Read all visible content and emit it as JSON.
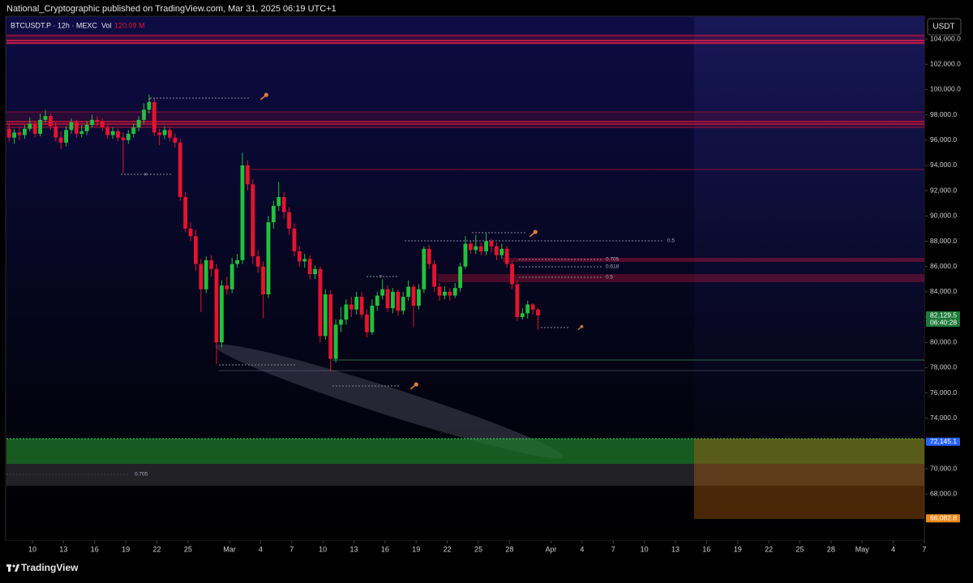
{
  "header": {
    "publisher": "National_Cryptographic published on TradingView.com, Mar 31, 2025 06:19 UTC+1"
  },
  "footer": {
    "brand": "TradingView"
  },
  "chart_data": {
    "type": "candlestick",
    "symbol": "BTCUSDT.P · 12h · MEXC",
    "volume_label": "Vol",
    "volume_value": "120.09 M",
    "currency": "USDT",
    "up_color": "#22c03c",
    "down_color": "#e5132e",
    "open": [
      96900,
      96200,
      96600,
      96400,
      96900,
      97300,
      96500,
      97600,
      97900,
      97100,
      96200,
      95800,
      96800,
      97400,
      96500,
      96700,
      97200,
      97600,
      97500,
      97000,
      96400,
      96700,
      96200,
      96000,
      96500,
      97000,
      97600,
      98400,
      99000,
      96600,
      96400,
      96800,
      96200,
      95800,
      91500,
      89000,
      88400,
      86200,
      84200,
      86500,
      85800,
      80000,
      84500,
      84200,
      86200,
      86500,
      94000,
      92500,
      86800,
      86000,
      83800,
      89500,
      90800,
      91500,
      90300,
      89000,
      87200,
      86400,
      86600,
      85400,
      85800,
      80500,
      83800,
      78700,
      81400,
      81800,
      83000,
      82600,
      83600,
      82200,
      80800,
      82900,
      83700,
      84200,
      82700,
      84000,
      82500,
      83600,
      84400,
      82900,
      84200,
      87400,
      86200,
      84400,
      83700,
      84000,
      83700,
      84300,
      86000,
      87800,
      87300,
      87600,
      87200,
      88000,
      87600,
      86900,
      87400,
      86200,
      84600,
      82000,
      82300,
      83000,
      82600
    ],
    "high": [
      97300,
      96900,
      97000,
      97200,
      97800,
      97500,
      98100,
      98400,
      98100,
      97400,
      96700,
      97100,
      97700,
      97600,
      97200,
      97500,
      98000,
      97900,
      97700,
      97200,
      97000,
      96900,
      96600,
      96800,
      97300,
      97900,
      98900,
      99600,
      99300,
      96900,
      97100,
      97000,
      96500,
      96100,
      91900,
      89500,
      88900,
      86600,
      86800,
      86900,
      86200,
      84900,
      85200,
      86700,
      87000,
      95000,
      94400,
      92900,
      87300,
      86400,
      90000,
      91200,
      92700,
      91900,
      90700,
      89400,
      87600,
      87000,
      86900,
      86100,
      86000,
      84200,
      84100,
      81800,
      82800,
      83400,
      83600,
      84000,
      84000,
      82600,
      83400,
      84000,
      85000,
      84500,
      84300,
      84200,
      84000,
      84900,
      84600,
      84600,
      87600,
      87700,
      86500,
      84700,
      84400,
      84300,
      84700,
      86300,
      88400,
      88000,
      88500,
      87900,
      88700,
      88200,
      87900,
      87800,
      87600,
      86400,
      84900,
      82700,
      83300,
      83100,
      82700
    ],
    "low": [
      95900,
      95700,
      96000,
      96100,
      96700,
      96200,
      96300,
      97400,
      96800,
      95900,
      95300,
      95500,
      96500,
      96200,
      96200,
      96400,
      97000,
      97100,
      96700,
      96100,
      96100,
      95900,
      93400,
      95700,
      96200,
      96700,
      97300,
      98100,
      96300,
      95600,
      96100,
      95900,
      95400,
      91200,
      88700,
      88000,
      85700,
      82400,
      83900,
      85200,
      78300,
      79600,
      83800,
      83900,
      85900,
      86200,
      92000,
      86200,
      85500,
      81900,
      83500,
      89000,
      90400,
      89800,
      88500,
      86800,
      86000,
      85900,
      85000,
      85000,
      80000,
      80200,
      77700,
      78400,
      80800,
      81400,
      82000,
      82200,
      81900,
      80400,
      80600,
      82500,
      83400,
      82400,
      82300,
      82100,
      82200,
      83300,
      81200,
      82600,
      83900,
      85800,
      84000,
      83300,
      83400,
      83300,
      83500,
      84000,
      85800,
      87000,
      87000,
      86900,
      86900,
      87100,
      86500,
      86600,
      85900,
      84200,
      81700,
      81800,
      81900,
      82200,
      81000
    ],
    "close": [
      96200,
      96600,
      96400,
      96900,
      97300,
      96500,
      97600,
      97900,
      97100,
      96200,
      95800,
      96800,
      97400,
      96500,
      96700,
      97200,
      97600,
      97500,
      97000,
      96400,
      96700,
      96200,
      96000,
      96500,
      97000,
      97600,
      98400,
      99000,
      96600,
      96400,
      96800,
      96200,
      95800,
      91500,
      89000,
      88400,
      86200,
      84200,
      86500,
      85800,
      80000,
      84500,
      84200,
      86200,
      86500,
      94000,
      92500,
      86800,
      86000,
      83800,
      89500,
      90800,
      91500,
      90300,
      89000,
      87200,
      86400,
      86600,
      85400,
      85800,
      80500,
      83800,
      78700,
      81400,
      81800,
      83000,
      82600,
      83600,
      82200,
      80800,
      82900,
      83700,
      84200,
      82700,
      84000,
      82500,
      83600,
      84400,
      82900,
      84200,
      87400,
      86200,
      84400,
      83700,
      84000,
      83700,
      84300,
      86000,
      87800,
      87300,
      87600,
      87200,
      88000,
      87600,
      86900,
      87400,
      86200,
      84600,
      82000,
      82300,
      83000,
      82600,
      82129.5
    ],
    "xlim": [
      0,
      177
    ],
    "xticks": [
      {
        "value": 5,
        "label": "10"
      },
      {
        "value": 11,
        "label": "13"
      },
      {
        "value": 17,
        "label": "16"
      },
      {
        "value": 23,
        "label": "19"
      },
      {
        "value": 29,
        "label": "22"
      },
      {
        "value": 35,
        "label": "25"
      },
      {
        "value": 43,
        "label": "Mar"
      },
      {
        "value": 49,
        "label": "4"
      },
      {
        "value": 55,
        "label": "7"
      },
      {
        "value": 61,
        "label": "10"
      },
      {
        "value": 67,
        "label": "13"
      },
      {
        "value": 73,
        "label": "16"
      },
      {
        "value": 79,
        "label": "19"
      },
      {
        "value": 85,
        "label": "22"
      },
      {
        "value": 91,
        "label": "25"
      },
      {
        "value": 97,
        "label": "28"
      },
      {
        "value": 105,
        "label": "Apr"
      },
      {
        "value": 111,
        "label": "4"
      },
      {
        "value": 117,
        "label": "7"
      },
      {
        "value": 123,
        "label": "10"
      },
      {
        "value": 129,
        "label": "13"
      },
      {
        "value": 135,
        "label": "16"
      },
      {
        "value": 141,
        "label": "19"
      },
      {
        "value": 147,
        "label": "22"
      },
      {
        "value": 153,
        "label": "25"
      },
      {
        "value": 159,
        "label": "28"
      },
      {
        "value": 165,
        "label": "May"
      },
      {
        "value": 171,
        "label": "4"
      },
      {
        "value": 177,
        "label": "7"
      }
    ],
    "ylim": [
      64300,
      105800
    ],
    "yticks": [
      {
        "value": 68000,
        "label": "68,000.0"
      },
      {
        "value": 70000,
        "label": "70,000.0"
      },
      {
        "value": 72000,
        "label": "72,000.0"
      },
      {
        "value": 74000,
        "label": "74,000.0"
      },
      {
        "value": 76000,
        "label": "76,000.0"
      },
      {
        "value": 78000,
        "label": "78,000.0"
      },
      {
        "value": 80000,
        "label": "80,000.0"
      },
      {
        "value": 82000,
        "label": "82,000.0"
      },
      {
        "value": 84000,
        "label": "84,000.0"
      },
      {
        "value": 86000,
        "label": "86,000.0"
      },
      {
        "value": 88000,
        "label": "88,000.0"
      },
      {
        "value": 90000,
        "label": "90,000.0"
      },
      {
        "value": 92000,
        "label": "92,000.0"
      },
      {
        "value": 94000,
        "label": "94,000.0"
      },
      {
        "value": 96000,
        "label": "96,000.0"
      },
      {
        "value": 98000,
        "label": "98,000.0"
      },
      {
        "value": 100000,
        "label": "100,000.0"
      },
      {
        "value": 102000,
        "label": "102,000.0"
      },
      {
        "value": 104000,
        "label": "104,000.0"
      }
    ],
    "price_labels": [
      {
        "value": 82129.5,
        "label": "82,129.5"
      },
      {
        "value": 72145.1,
        "label": "72,145.1"
      },
      {
        "value": 66082.8,
        "label": "66,082.8"
      }
    ],
    "countdown": "06:40:28",
    "annotations": [
      "0.5",
      "0.705",
      "0.618",
      "0.5",
      "0.705",
      "x",
      "x"
    ]
  }
}
